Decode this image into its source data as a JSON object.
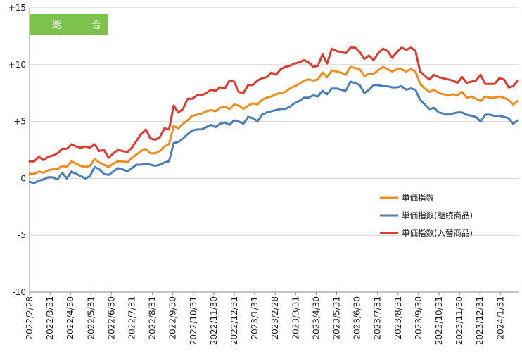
{
  "chart_data": {
    "type": "line",
    "title": "総　合",
    "xlabel": "",
    "ylabel": "",
    "ylim": [
      -10,
      15
    ],
    "y_ticks": [
      {
        "value": 15,
        "label": "+15"
      },
      {
        "value": 10,
        "label": "+10"
      },
      {
        "value": 5,
        "label": "+5"
      },
      {
        "value": 0,
        "label": "0"
      },
      {
        "value": -5,
        "label": "-5"
      },
      {
        "value": -10,
        "label": "-10"
      }
    ],
    "x_tick_labels": [
      "2022/2/28",
      "2022/3/31",
      "2022/4/30",
      "2022/5/31",
      "2022/6/30",
      "2022/7/31",
      "2022/8/31",
      "2022/9/30",
      "2022/10/31",
      "2022/11/30",
      "2022/12/31",
      "2023/1/31",
      "2023/2/28",
      "2023/3/31",
      "2023/4/30",
      "2023/5/31",
      "2023/6/30",
      "2023/7/31",
      "2023/8/31",
      "2023/9/30",
      "2023/10/31",
      "2023/11/30",
      "2023/12/31",
      "2024/1/31"
    ],
    "grid": {
      "horizontal": true,
      "vertical": false
    },
    "legend_position": "center-right",
    "series": [
      {
        "name": "単価指数",
        "color": "#F28C1C",
        "values": [
          0.4,
          0.4,
          0.6,
          0.5,
          0.7,
          0.8,
          0.8,
          1.1,
          1.0,
          1.5,
          1.3,
          1.1,
          1.0,
          1.1,
          1.7,
          1.4,
          1.2,
          1.0,
          1.3,
          1.5,
          1.5,
          1.4,
          1.8,
          2.1,
          2.4,
          2.6,
          2.2,
          2.2,
          2.4,
          2.8,
          3.0,
          4.6,
          4.4,
          4.8,
          5.1,
          5.5,
          5.6,
          5.7,
          5.9,
          6.0,
          5.9,
          6.2,
          6.3,
          6.1,
          6.5,
          6.4,
          6.1,
          6.4,
          6.6,
          6.5,
          6.9,
          7.1,
          7.2,
          7.4,
          7.5,
          7.6,
          7.9,
          8.1,
          8.3,
          8.6,
          8.7,
          8.6,
          8.7,
          9.3,
          8.9,
          9.5,
          9.4,
          9.3,
          9.1,
          9.8,
          9.7,
          9.6,
          9.0,
          9.2,
          9.2,
          9.5,
          9.8,
          9.6,
          9.4,
          9.6,
          9.6,
          9.4,
          9.6,
          9.4,
          8.3,
          7.9,
          7.6,
          7.8,
          7.5,
          7.4,
          7.3,
          7.4,
          7.3,
          7.6,
          7.1,
          7.2,
          7.0,
          6.8,
          7.2,
          7.1,
          7.1,
          7.2,
          7.1,
          6.9,
          6.5,
          6.8
        ]
      },
      {
        "name": "単価指数(継続商品)",
        "color": "#4A7EBB",
        "values": [
          -0.3,
          -0.4,
          -0.2,
          -0.1,
          0.1,
          0.1,
          -0.1,
          0.5,
          0.0,
          0.6,
          0.4,
          0.2,
          0.0,
          0.2,
          1.0,
          0.8,
          0.4,
          0.3,
          0.6,
          0.9,
          0.8,
          0.6,
          0.9,
          1.2,
          1.2,
          1.3,
          1.2,
          1.1,
          1.2,
          1.4,
          1.5,
          3.1,
          3.2,
          3.5,
          3.9,
          4.2,
          4.3,
          4.3,
          4.5,
          4.7,
          4.5,
          4.8,
          4.9,
          4.7,
          5.1,
          5.0,
          4.8,
          5.4,
          5.3,
          5.0,
          5.6,
          5.8,
          5.9,
          6.0,
          6.1,
          6.1,
          6.3,
          6.6,
          6.8,
          7.1,
          7.1,
          7.3,
          7.2,
          7.7,
          7.4,
          7.9,
          7.9,
          7.8,
          7.7,
          8.5,
          8.4,
          8.2,
          7.5,
          7.8,
          8.2,
          8.2,
          8.1,
          8.1,
          8.0,
          8.0,
          8.1,
          7.8,
          7.9,
          7.8,
          6.9,
          6.5,
          6.1,
          6.2,
          5.8,
          5.7,
          5.6,
          5.7,
          5.8,
          5.8,
          5.6,
          5.5,
          5.4,
          5.0,
          5.6,
          5.6,
          5.5,
          5.5,
          5.4,
          5.3,
          4.8,
          5.1
        ]
      },
      {
        "name": "単価指数(入替商品)",
        "color": "#E03A2E",
        "values": [
          1.5,
          1.5,
          1.9,
          1.6,
          1.9,
          2.0,
          2.2,
          2.6,
          2.6,
          3.0,
          2.8,
          2.7,
          2.8,
          2.7,
          3.0,
          2.4,
          2.5,
          1.8,
          2.2,
          2.5,
          2.4,
          2.3,
          2.7,
          3.3,
          3.9,
          4.3,
          3.5,
          3.4,
          3.6,
          4.4,
          4.3,
          6.4,
          5.8,
          6.1,
          7.0,
          7.0,
          7.3,
          7.3,
          7.5,
          7.8,
          7.7,
          8.0,
          7.9,
          8.6,
          8.5,
          7.6,
          7.5,
          8.2,
          8.2,
          8.6,
          8.8,
          8.9,
          9.3,
          9.1,
          9.6,
          9.8,
          9.9,
          10.1,
          10.2,
          10.4,
          10.2,
          9.8,
          9.9,
          10.9,
          10.1,
          11.4,
          11.2,
          11.1,
          11.0,
          11.5,
          11.5,
          11.1,
          10.5,
          10.8,
          10.4,
          11.0,
          11.4,
          11.2,
          10.6,
          11.1,
          11.5,
          11.3,
          11.5,
          11.2,
          9.4,
          9.0,
          8.7,
          9.1,
          8.9,
          8.8,
          8.7,
          8.6,
          8.4,
          8.9,
          8.4,
          8.5,
          8.6,
          9.1,
          8.3,
          8.3,
          8.3,
          8.8,
          8.7,
          8.0,
          8.1,
          8.6
        ]
      }
    ]
  }
}
